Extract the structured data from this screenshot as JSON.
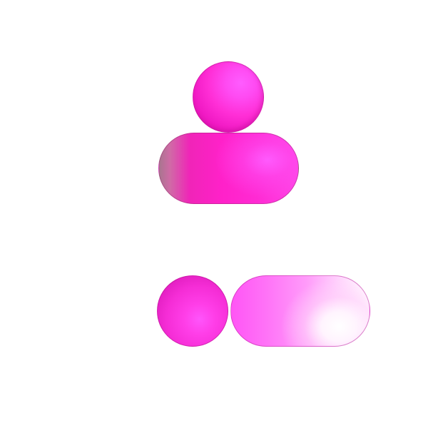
{
  "scene": {
    "description_colors": {
      "primary_magenta": "#ff2ed6",
      "highlight_magenta": "#ff5cff",
      "light_pink": "#ffd8fd",
      "background": "#ffffff"
    },
    "groups": [
      {
        "id": "top-group",
        "shapes": [
          "sphere",
          "pill"
        ]
      },
      {
        "id": "bottom-group",
        "shapes": [
          "sphere",
          "pill"
        ]
      }
    ]
  }
}
